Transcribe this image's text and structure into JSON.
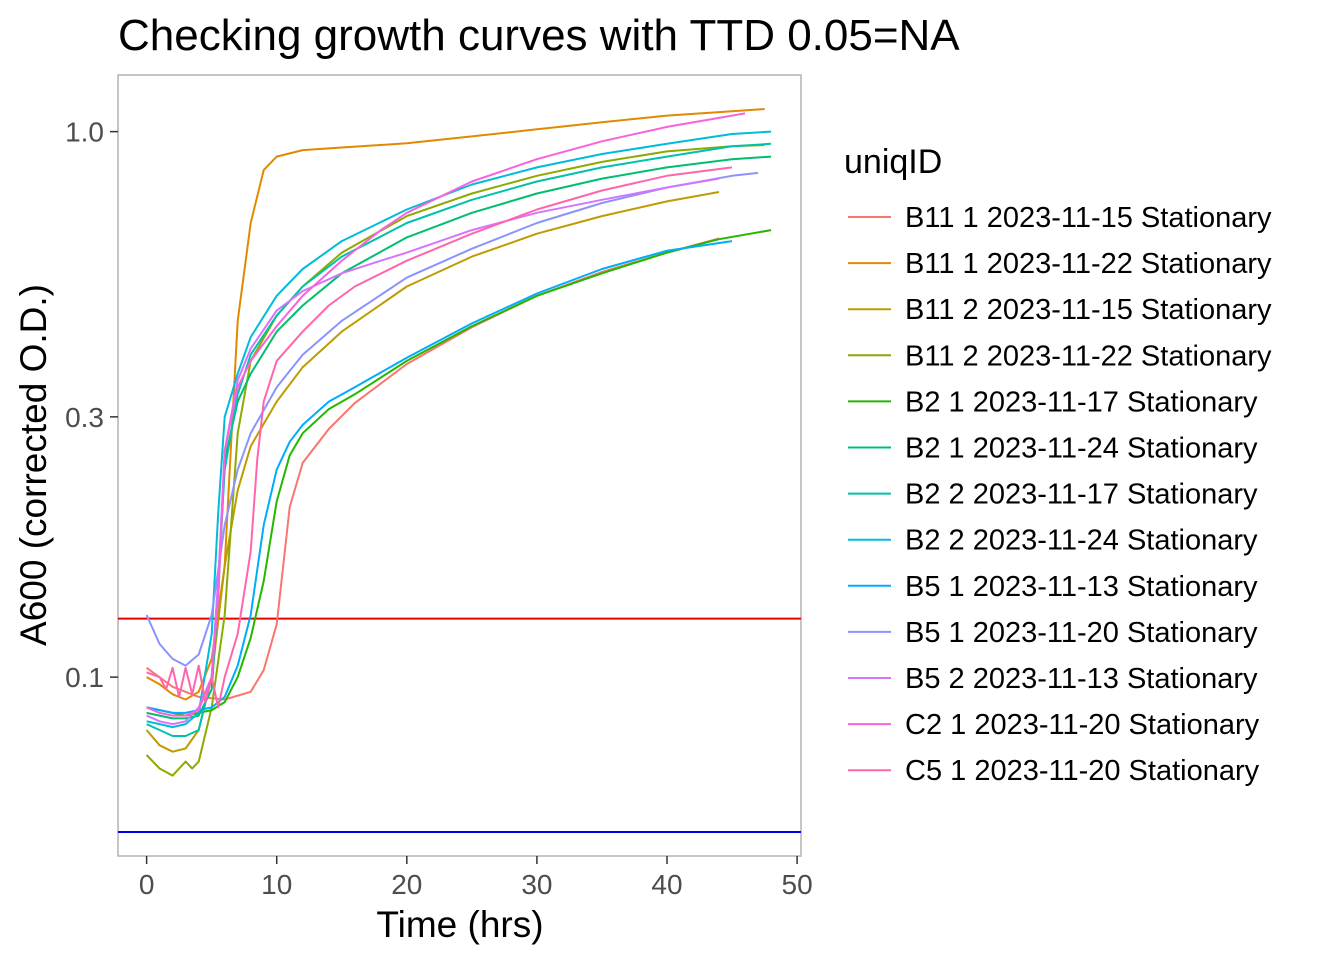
{
  "chart_data": {
    "type": "line",
    "title": "Checking growth curves with TTD 0.05=NA",
    "xlabel": "Time (hrs)",
    "ylabel": "A600 (corrected O.D.)",
    "xlim": [
      -2.2,
      50.3
    ],
    "ylim": [
      0.047,
      1.27
    ],
    "y_scale": "log",
    "x_ticks": [
      0,
      10,
      20,
      30,
      40,
      50
    ],
    "x_tick_labels": [
      "0",
      "10",
      "20",
      "30",
      "40",
      "50"
    ],
    "y_ticks": [
      0.1,
      0.3,
      1.0
    ],
    "y_tick_labels": [
      "0.1",
      "0.3",
      "1.0"
    ],
    "grid": false,
    "legend": {
      "title": "uniqID",
      "position": "right"
    },
    "reference_lines": [
      {
        "y": 0.128,
        "color": "#e60000"
      },
      {
        "y": 0.052,
        "color": "#0000e6"
      }
    ],
    "series": [
      {
        "name": "B11 1 2023-11-15 Stationary",
        "color": "#F8766D",
        "points": [
          [
            0,
            0.104
          ],
          [
            2,
            0.096
          ],
          [
            4,
            0.092
          ],
          [
            6,
            0.091
          ],
          [
            8,
            0.094
          ],
          [
            9,
            0.103
          ],
          [
            10,
            0.125
          ],
          [
            10.5,
            0.16
          ],
          [
            11,
            0.205
          ],
          [
            12,
            0.247
          ],
          [
            14,
            0.285
          ],
          [
            16,
            0.318
          ],
          [
            20,
            0.375
          ],
          [
            25,
            0.438
          ],
          [
            30,
            0.5
          ],
          [
            35,
            0.553
          ],
          [
            40,
            0.6
          ],
          [
            44,
            0.637
          ]
        ]
      },
      {
        "name": "B11 1 2023-11-22 Stationary",
        "color": "#E18A00",
        "points": [
          [
            0,
            0.1
          ],
          [
            1,
            0.097
          ],
          [
            2,
            0.093
          ],
          [
            3,
            0.091
          ],
          [
            4,
            0.094
          ],
          [
            5,
            0.108
          ],
          [
            6,
            0.16
          ],
          [
            6.5,
            0.27
          ],
          [
            7,
            0.45
          ],
          [
            8,
            0.68
          ],
          [
            9,
            0.85
          ],
          [
            10,
            0.9
          ],
          [
            12,
            0.925
          ],
          [
            15,
            0.935
          ],
          [
            20,
            0.952
          ],
          [
            25,
            0.98
          ],
          [
            30,
            1.01
          ],
          [
            35,
            1.04
          ],
          [
            40,
            1.07
          ],
          [
            45,
            1.09
          ],
          [
            47.5,
            1.1
          ]
        ]
      },
      {
        "name": "B11 2 2023-11-15 Stationary",
        "color": "#BE9C00",
        "points": [
          [
            0,
            0.08
          ],
          [
            1,
            0.075
          ],
          [
            2,
            0.073
          ],
          [
            3,
            0.074
          ],
          [
            4,
            0.08
          ],
          [
            5,
            0.1
          ],
          [
            6,
            0.16
          ],
          [
            7,
            0.22
          ],
          [
            8,
            0.265
          ],
          [
            10,
            0.32
          ],
          [
            12,
            0.37
          ],
          [
            15,
            0.43
          ],
          [
            20,
            0.52
          ],
          [
            25,
            0.59
          ],
          [
            30,
            0.65
          ],
          [
            35,
            0.7
          ],
          [
            40,
            0.745
          ],
          [
            44,
            0.775
          ]
        ]
      },
      {
        "name": "B11 2 2023-11-22 Stationary",
        "color": "#8CAB00",
        "points": [
          [
            0,
            0.072
          ],
          [
            1,
            0.068
          ],
          [
            2,
            0.066
          ],
          [
            3,
            0.07
          ],
          [
            3.5,
            0.068
          ],
          [
            4,
            0.07
          ],
          [
            5,
            0.088
          ],
          [
            6,
            0.13
          ],
          [
            7,
            0.28
          ],
          [
            8,
            0.38
          ],
          [
            10,
            0.46
          ],
          [
            12,
            0.52
          ],
          [
            15,
            0.6
          ],
          [
            20,
            0.7
          ],
          [
            25,
            0.77
          ],
          [
            30,
            0.83
          ],
          [
            35,
            0.88
          ],
          [
            40,
            0.92
          ],
          [
            45,
            0.94
          ],
          [
            47.5,
            0.945
          ]
        ]
      },
      {
        "name": "B2 1 2023-11-17 Stationary",
        "color": "#24B700",
        "points": [
          [
            0,
            0.088
          ],
          [
            1,
            0.087
          ],
          [
            2,
            0.086
          ],
          [
            3,
            0.085
          ],
          [
            4,
            0.086
          ],
          [
            5,
            0.087
          ],
          [
            6,
            0.09
          ],
          [
            7,
            0.1
          ],
          [
            8,
            0.118
          ],
          [
            9,
            0.15
          ],
          [
            10,
            0.21
          ],
          [
            11,
            0.255
          ],
          [
            12,
            0.28
          ],
          [
            14,
            0.31
          ],
          [
            16,
            0.33
          ],
          [
            20,
            0.38
          ],
          [
            25,
            0.44
          ],
          [
            30,
            0.5
          ],
          [
            35,
            0.55
          ],
          [
            40,
            0.6
          ],
          [
            44,
            0.635
          ],
          [
            48,
            0.66
          ]
        ]
      },
      {
        "name": "B2 1 2023-11-24 Stationary",
        "color": "#00BE70",
        "points": [
          [
            0,
            0.086
          ],
          [
            1,
            0.085
          ],
          [
            2,
            0.084
          ],
          [
            3,
            0.084
          ],
          [
            4,
            0.085
          ],
          [
            5,
            0.095
          ],
          [
            5.5,
            0.14
          ],
          [
            6,
            0.25
          ],
          [
            7,
            0.32
          ],
          [
            8,
            0.36
          ],
          [
            10,
            0.43
          ],
          [
            12,
            0.48
          ],
          [
            15,
            0.55
          ],
          [
            20,
            0.64
          ],
          [
            25,
            0.71
          ],
          [
            30,
            0.77
          ],
          [
            35,
            0.82
          ],
          [
            40,
            0.86
          ],
          [
            45,
            0.89
          ],
          [
            48,
            0.9
          ]
        ]
      },
      {
        "name": "B2 2 2023-11-17 Stationary",
        "color": "#00C1AB",
        "points": [
          [
            0,
            0.082
          ],
          [
            1,
            0.08
          ],
          [
            2,
            0.078
          ],
          [
            3,
            0.078
          ],
          [
            4,
            0.08
          ],
          [
            5,
            0.1
          ],
          [
            5.5,
            0.15
          ],
          [
            6,
            0.24
          ],
          [
            7,
            0.33
          ],
          [
            8,
            0.39
          ],
          [
            10,
            0.46
          ],
          [
            12,
            0.52
          ],
          [
            15,
            0.59
          ],
          [
            20,
            0.68
          ],
          [
            25,
            0.75
          ],
          [
            30,
            0.81
          ],
          [
            35,
            0.86
          ],
          [
            40,
            0.9
          ],
          [
            45,
            0.94
          ],
          [
            48,
            0.95
          ]
        ]
      },
      {
        "name": "B2 2 2023-11-24 Stationary",
        "color": "#00BBDA",
        "points": [
          [
            0,
            0.083
          ],
          [
            1,
            0.082
          ],
          [
            2,
            0.081
          ],
          [
            3,
            0.082
          ],
          [
            4,
            0.086
          ],
          [
            5,
            0.12
          ],
          [
            5.5,
            0.2
          ],
          [
            6,
            0.3
          ],
          [
            7,
            0.36
          ],
          [
            8,
            0.42
          ],
          [
            10,
            0.5
          ],
          [
            12,
            0.56
          ],
          [
            15,
            0.63
          ],
          [
            20,
            0.72
          ],
          [
            25,
            0.8
          ],
          [
            30,
            0.86
          ],
          [
            35,
            0.91
          ],
          [
            40,
            0.95
          ],
          [
            45,
            0.99
          ],
          [
            48,
            1.0
          ]
        ]
      },
      {
        "name": "B5 1 2023-11-13 Stationary",
        "color": "#00ACFC",
        "points": [
          [
            0,
            0.088
          ],
          [
            1,
            0.087
          ],
          [
            2,
            0.086
          ],
          [
            3,
            0.086
          ],
          [
            4,
            0.087
          ],
          [
            5,
            0.088
          ],
          [
            6,
            0.092
          ],
          [
            7,
            0.105
          ],
          [
            8,
            0.13
          ],
          [
            9,
            0.19
          ],
          [
            10,
            0.24
          ],
          [
            11,
            0.27
          ],
          [
            12,
            0.29
          ],
          [
            14,
            0.32
          ],
          [
            16,
            0.34
          ],
          [
            20,
            0.385
          ],
          [
            25,
            0.445
          ],
          [
            30,
            0.505
          ],
          [
            35,
            0.56
          ],
          [
            40,
            0.605
          ],
          [
            45,
            0.63
          ]
        ]
      },
      {
        "name": "B5 1 2023-11-20 Stationary",
        "color": "#8B93FF",
        "points": [
          [
            0,
            0.13
          ],
          [
            1,
            0.115
          ],
          [
            2,
            0.108
          ],
          [
            3,
            0.105
          ],
          [
            4,
            0.11
          ],
          [
            5,
            0.13
          ],
          [
            6,
            0.19
          ],
          [
            7,
            0.24
          ],
          [
            8,
            0.28
          ],
          [
            10,
            0.34
          ],
          [
            12,
            0.39
          ],
          [
            15,
            0.45
          ],
          [
            20,
            0.54
          ],
          [
            25,
            0.61
          ],
          [
            30,
            0.68
          ],
          [
            35,
            0.74
          ],
          [
            40,
            0.79
          ],
          [
            45,
            0.83
          ],
          [
            47,
            0.84
          ]
        ]
      },
      {
        "name": "B5 2 2023-11-13 Stationary",
        "color": "#D575FE",
        "points": [
          [
            0,
            0.085
          ],
          [
            1,
            0.083
          ],
          [
            2,
            0.082
          ],
          [
            3,
            0.083
          ],
          [
            4,
            0.088
          ],
          [
            5,
            0.1
          ],
          [
            5.5,
            0.15
          ],
          [
            6,
            0.26
          ],
          [
            7,
            0.35
          ],
          [
            8,
            0.4
          ],
          [
            10,
            0.47
          ],
          [
            12,
            0.51
          ],
          [
            15,
            0.55
          ],
          [
            18,
            0.58
          ],
          [
            20,
            0.6
          ],
          [
            25,
            0.66
          ],
          [
            30,
            0.71
          ],
          [
            35,
            0.75
          ],
          [
            40,
            0.79
          ],
          [
            44,
            0.82
          ]
        ]
      },
      {
        "name": "C2 1 2023-11-20 Stationary",
        "color": "#F962DD",
        "points": [
          [
            0,
            0.088
          ],
          [
            1,
            0.086
          ],
          [
            2,
            0.085
          ],
          [
            3,
            0.085
          ],
          [
            4,
            0.087
          ],
          [
            5,
            0.1
          ],
          [
            5.5,
            0.14
          ],
          [
            6,
            0.26
          ],
          [
            7,
            0.34
          ],
          [
            8,
            0.38
          ],
          [
            10,
            0.44
          ],
          [
            12,
            0.5
          ],
          [
            15,
            0.58
          ],
          [
            18,
            0.66
          ],
          [
            20,
            0.71
          ],
          [
            25,
            0.81
          ],
          [
            30,
            0.89
          ],
          [
            35,
            0.96
          ],
          [
            40,
            1.02
          ],
          [
            45,
            1.07
          ],
          [
            46,
            1.08
          ]
        ]
      },
      {
        "name": "C5 1 2023-11-20 Stationary",
        "color": "#FF65AC",
        "points": [
          [
            0,
            0.102
          ],
          [
            1,
            0.1
          ],
          [
            1.5,
            0.095
          ],
          [
            2,
            0.104
          ],
          [
            2.5,
            0.092
          ],
          [
            3,
            0.104
          ],
          [
            3.5,
            0.093
          ],
          [
            4,
            0.105
          ],
          [
            4.5,
            0.09
          ],
          [
            5,
            0.1
          ],
          [
            5.5,
            0.088
          ],
          [
            6,
            0.1
          ],
          [
            7,
            0.12
          ],
          [
            8,
            0.17
          ],
          [
            8.5,
            0.25
          ],
          [
            9,
            0.32
          ],
          [
            10,
            0.38
          ],
          [
            12,
            0.43
          ],
          [
            14,
            0.48
          ],
          [
            16,
            0.52
          ],
          [
            20,
            0.58
          ],
          [
            25,
            0.65
          ],
          [
            30,
            0.72
          ],
          [
            35,
            0.78
          ],
          [
            40,
            0.83
          ],
          [
            45,
            0.86
          ]
        ]
      }
    ]
  }
}
